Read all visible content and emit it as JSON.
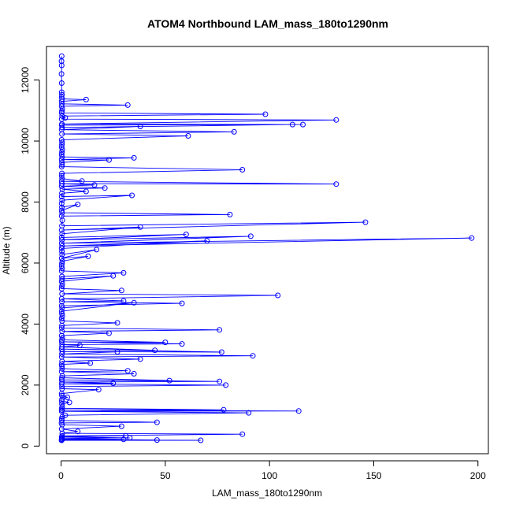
{
  "chart_data": {
    "type": "line",
    "title": "ATOM4 Northbound LAM_mass_180to1290nm",
    "xlabel": "LAM_mass_180to1290nm",
    "ylabel": "Altitude (m)",
    "xlim": [
      -7,
      205
    ],
    "ylim": [
      -250,
      13100
    ],
    "x_ticks": [
      0,
      50,
      100,
      150,
      200
    ],
    "y_ticks": [
      0,
      2000,
      4000,
      6000,
      8000,
      10000,
      12000
    ],
    "series": [
      {
        "color": "#0000ff",
        "markers": "open-circle",
        "points": [
          [
            0.2,
            190
          ],
          [
            67,
            190
          ],
          [
            0.5,
            210
          ],
          [
            46,
            200
          ],
          [
            0.3,
            230
          ],
          [
            30,
            220
          ],
          [
            0.4,
            260
          ],
          [
            33,
            270
          ],
          [
            0.3,
            300
          ],
          [
            31,
            340
          ],
          [
            0.5,
            330
          ],
          [
            87,
            390
          ],
          [
            0.6,
            420
          ],
          [
            8,
            480
          ],
          [
            0.3,
            560
          ],
          [
            29,
            650
          ],
          [
            0.5,
            700
          ],
          [
            0.2,
            760
          ],
          [
            46,
            780
          ],
          [
            0.4,
            840
          ],
          [
            0.3,
            900
          ],
          [
            0.6,
            960
          ],
          [
            2,
            1010
          ],
          [
            90,
            1090
          ],
          [
            0.3,
            1140
          ],
          [
            114,
            1150
          ],
          [
            0.5,
            1180
          ],
          [
            78,
            1190
          ],
          [
            0.3,
            1240
          ],
          [
            0.6,
            1300
          ],
          [
            0.4,
            1380
          ],
          [
            4,
            1430
          ],
          [
            0.3,
            1480
          ],
          [
            0.5,
            1540
          ],
          [
            3,
            1600
          ],
          [
            0.4,
            1660
          ],
          [
            0.3,
            1720
          ],
          [
            18,
            1850
          ],
          [
            0.5,
            1880
          ],
          [
            0.4,
            1950
          ],
          [
            79,
            2000
          ],
          [
            0.3,
            2040
          ],
          [
            25,
            2060
          ],
          [
            0.5,
            2100
          ],
          [
            76,
            2120
          ],
          [
            0.3,
            2170
          ],
          [
            52,
            2150
          ],
          [
            0.4,
            2240
          ],
          [
            0.6,
            2300
          ],
          [
            35,
            2370
          ],
          [
            0.3,
            2440
          ],
          [
            32,
            2470
          ],
          [
            0.5,
            2540
          ],
          [
            0.4,
            2620
          ],
          [
            0.3,
            2680
          ],
          [
            14,
            2720
          ],
          [
            0.5,
            2780
          ],
          [
            38,
            2850
          ],
          [
            0.3,
            2920
          ],
          [
            92,
            2960
          ],
          [
            0.4,
            3020
          ],
          [
            27,
            3090
          ],
          [
            0.6,
            3100
          ],
          [
            77,
            3080
          ],
          [
            0.3,
            3180
          ],
          [
            45,
            3140
          ],
          [
            0.4,
            3250
          ],
          [
            9,
            3300
          ],
          [
            0.5,
            3330
          ],
          [
            58,
            3350
          ],
          [
            0.3,
            3420
          ],
          [
            50,
            3400
          ],
          [
            0.4,
            3480
          ],
          [
            0.6,
            3540
          ],
          [
            0.3,
            3620
          ],
          [
            23,
            3700
          ],
          [
            0.5,
            3760
          ],
          [
            76,
            3810
          ],
          [
            0.3,
            3870
          ],
          [
            0.4,
            3950
          ],
          [
            27,
            4040
          ],
          [
            0.5,
            4100
          ],
          [
            0.3,
            4180
          ],
          [
            0.6,
            4260
          ],
          [
            0.4,
            4340
          ],
          [
            0.3,
            4420
          ],
          [
            35,
            4700
          ],
          [
            0.5,
            4530
          ],
          [
            0.3,
            4600
          ],
          [
            58,
            4680
          ],
          [
            0.4,
            4730
          ],
          [
            30,
            4760
          ],
          [
            0.3,
            4830
          ],
          [
            104,
            4940
          ],
          [
            0.5,
            4990
          ],
          [
            29,
            5100
          ],
          [
            0.3,
            5160
          ],
          [
            0.4,
            5240
          ],
          [
            0.6,
            5320
          ],
          [
            0.3,
            5400
          ],
          [
            25,
            5580
          ],
          [
            0.5,
            5480
          ],
          [
            0.4,
            5560
          ],
          [
            30,
            5680
          ],
          [
            0.3,
            5740
          ],
          [
            0.5,
            5820
          ],
          [
            0.3,
            5900
          ],
          [
            0.4,
            5980
          ],
          [
            0.6,
            6060
          ],
          [
            13,
            6220
          ],
          [
            0.3,
            6160
          ],
          [
            17,
            6440
          ],
          [
            0.5,
            6280
          ],
          [
            0.4,
            6380
          ],
          [
            0.3,
            6480
          ],
          [
            70,
            6730
          ],
          [
            0.5,
            6560
          ],
          [
            197,
            6820
          ],
          [
            0.3,
            6650
          ],
          [
            91,
            6880
          ],
          [
            0.4,
            6760
          ],
          [
            60,
            6940
          ],
          [
            0.3,
            6840
          ],
          [
            0.5,
            6960
          ],
          [
            38,
            7180
          ],
          [
            0.3,
            7080
          ],
          [
            146,
            7340
          ],
          [
            0.4,
            7220
          ],
          [
            0.6,
            7400
          ],
          [
            0.3,
            7540
          ],
          [
            81,
            7590
          ],
          [
            0.5,
            7650
          ],
          [
            0.3,
            7720
          ],
          [
            8,
            7920
          ],
          [
            0.4,
            7830
          ],
          [
            0.3,
            7950
          ],
          [
            0.5,
            8060
          ],
          [
            34,
            8220
          ],
          [
            0.3,
            8180
          ],
          [
            0.4,
            8290
          ],
          [
            12,
            8350
          ],
          [
            0.6,
            8420
          ],
          [
            21,
            8460
          ],
          [
            0.3,
            8520
          ],
          [
            16,
            8560
          ],
          [
            0.4,
            8600
          ],
          [
            132,
            8590
          ],
          [
            0.3,
            8680
          ],
          [
            10,
            8690
          ],
          [
            0.5,
            8770
          ],
          [
            0.3,
            8860
          ],
          [
            0.4,
            8940
          ],
          [
            87,
            9060
          ],
          [
            0.3,
            9160
          ],
          [
            0.5,
            9220
          ],
          [
            0.4,
            9300
          ],
          [
            23,
            9380
          ],
          [
            0.3,
            9390
          ],
          [
            35,
            9450
          ],
          [
            0.5,
            9480
          ],
          [
            0.3,
            9560
          ],
          [
            0.4,
            9640
          ],
          [
            0.6,
            9720
          ],
          [
            0.3,
            9800
          ],
          [
            0.4,
            9880
          ],
          [
            0.5,
            9960
          ],
          [
            0.3,
            10040
          ],
          [
            61,
            10170
          ],
          [
            0.4,
            10230
          ],
          [
            83,
            10300
          ],
          [
            0.3,
            10370
          ],
          [
            38,
            10480
          ],
          [
            0.5,
            10440
          ],
          [
            111,
            10540
          ],
          [
            0.3,
            10520
          ],
          [
            116,
            10540
          ],
          [
            0.4,
            10560
          ],
          [
            132,
            10690
          ],
          [
            0.3,
            10720
          ],
          [
            2,
            10760
          ],
          [
            0.5,
            10820
          ],
          [
            98,
            10880
          ],
          [
            0.3,
            10920
          ],
          [
            0.4,
            10980
          ],
          [
            0.6,
            11060
          ],
          [
            0.3,
            11140
          ],
          [
            32,
            11180
          ],
          [
            0.4,
            11220
          ],
          [
            0.3,
            11300
          ],
          [
            12,
            11360
          ],
          [
            0.5,
            11380
          ],
          [
            0.3,
            11440
          ],
          [
            0.4,
            11520
          ],
          [
            0.3,
            11600
          ],
          [
            0.3,
            11900
          ],
          [
            0.2,
            12200
          ],
          [
            0.3,
            12480
          ],
          [
            0.2,
            12620
          ],
          [
            0.3,
            12780
          ]
        ]
      }
    ]
  }
}
